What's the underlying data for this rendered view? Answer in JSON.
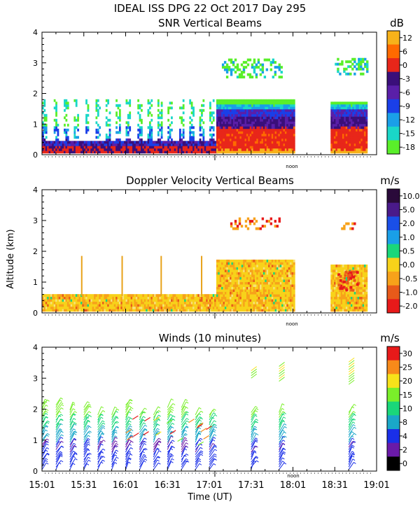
{
  "header": {
    "title": "IDEAL ISS DPG  22 Oct 2017 Day 295"
  },
  "shared": {
    "ylabel": "Altitude (km)",
    "xlabel": "Time (UT)",
    "time_ticks": [
      "15:01",
      "15:31",
      "16:01",
      "16:31",
      "17:01",
      "17:31",
      "18:01",
      "18:31",
      "19:01"
    ],
    "time_range_min": [
      0,
      240
    ],
    "noon_label": "noon",
    "noon_min": 124
  },
  "chart_data": [
    {
      "type": "heatmap",
      "title": "SNR Vertical Beams",
      "unit": "dB",
      "ylim": [
        0,
        4
      ],
      "yticks": [
        "0",
        "1",
        "2",
        "3",
        "4"
      ],
      "colorbar": {
        "labels": [
          "12",
          "6",
          "0",
          "-3",
          "-6",
          "-9",
          "-12",
          "-15",
          "-18"
        ],
        "colors": [
          "#f7b21a",
          "#ff6a00",
          "#e8261a",
          "#3a0f7a",
          "#5a1fa8",
          "#1a3fe8",
          "#1a9fe8",
          "#1ad7c8",
          "#5aef2a"
        ]
      },
      "segments": [
        {
          "start_min": 0,
          "end_min": 125,
          "top_km": 1.8,
          "pattern": "sparse-columns"
        },
        {
          "start_min": 125,
          "end_min": 181,
          "top_km": 1.8,
          "pattern": "dense"
        },
        {
          "start_min": 207,
          "end_min": 233,
          "top_km": 1.7,
          "pattern": "dense"
        }
      ],
      "upper_echoes": [
        {
          "start_min": 129,
          "end_min": 172,
          "low_km": 2.5,
          "high_km": 3.1
        },
        {
          "start_min": 210,
          "end_min": 233,
          "low_km": 2.6,
          "high_km": 3.1
        }
      ]
    },
    {
      "type": "heatmap",
      "title": "Doppler Velocity Vertical Beams",
      "unit": "m/s",
      "ylim": [
        0,
        4
      ],
      "yticks": [
        "0",
        "1",
        "2",
        "3",
        "4"
      ],
      "colorbar": {
        "labels": [
          "10.0",
          "5.0",
          "2.0",
          "1.0",
          "0.5",
          "0.0",
          "-0.5",
          "-1.0",
          "-2.0"
        ],
        "colors": [
          "#2a0a3a",
          "#4a1a8a",
          "#1a4fe8",
          "#1a9fe8",
          "#1ad77a",
          "#f7d21a",
          "#f7a21a",
          "#e85a1a",
          "#e81a1a"
        ]
      },
      "segments": [
        {
          "start_min": 0,
          "end_min": 125,
          "top_km": 0.55
        },
        {
          "start_min": 125,
          "end_min": 181,
          "top_km": 1.7
        },
        {
          "start_min": 207,
          "end_min": 233,
          "top_km": 1.5
        }
      ],
      "spikes_min": [
        28,
        57,
        85,
        114
      ],
      "upper_echoes": [
        {
          "start_min": 135,
          "end_min": 172,
          "low_km": 2.7,
          "high_km": 3.1
        },
        {
          "start_min": 210,
          "end_min": 233,
          "low_km": 2.7,
          "high_km": 2.9
        }
      ]
    },
    {
      "type": "wind-barbs",
      "title": "Winds (10 minutes)",
      "unit": "m/s",
      "ylim": [
        0,
        4
      ],
      "yticks": [
        "0",
        "1",
        "2",
        "3",
        "4"
      ],
      "colorbar": {
        "labels": [
          "30",
          "25",
          "20",
          "15",
          "10",
          "8",
          "4",
          "2",
          "0"
        ],
        "colors": [
          "#e81a1a",
          "#f78a1a",
          "#f7e21a",
          "#7aef2a",
          "#1ad77a",
          "#1aa7c8",
          "#1a2fe8",
          "#6a1aa8",
          "#000000"
        ]
      },
      "profile_times_min": [
        0,
        10,
        20,
        30,
        40,
        50,
        60,
        70,
        80,
        90,
        100,
        110,
        120,
        150,
        170,
        220
      ],
      "upper_profiles": [
        {
          "time_min": 150,
          "low_km": 3.0,
          "high_km": 3.3
        },
        {
          "time_min": 170,
          "low_km": 2.9,
          "high_km": 3.4
        },
        {
          "time_min": 220,
          "low_km": 2.8,
          "high_km": 3.6
        }
      ]
    }
  ]
}
